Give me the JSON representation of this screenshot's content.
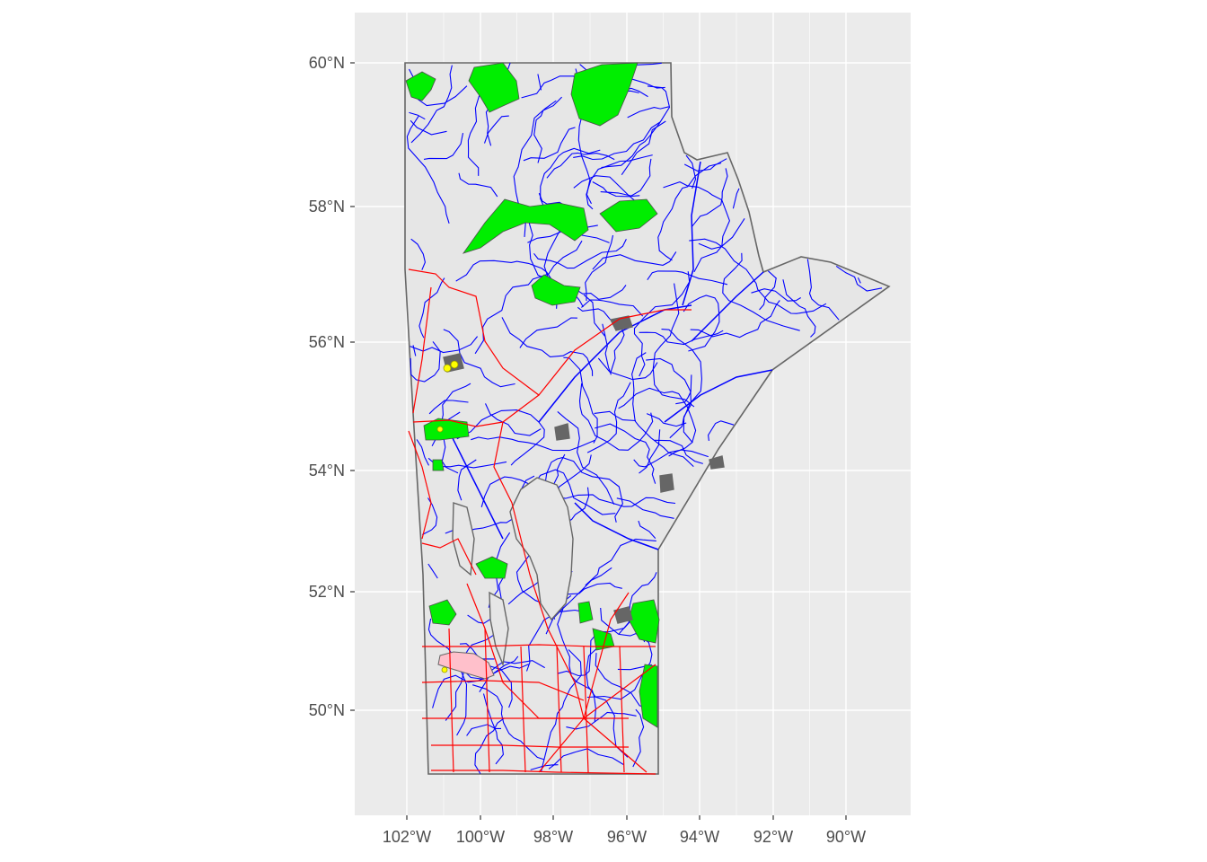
{
  "map": {
    "type": "choropleth-style GIS map",
    "region": "Manitoba",
    "axes": {
      "x_ticks": [
        "102°W",
        "100°W",
        "98°W",
        "96°W",
        "94°W",
        "92°W",
        "90°W"
      ],
      "y_ticks": [
        "60°N",
        "58°N",
        "56°N",
        "54°N",
        "52°N",
        "50°N"
      ],
      "x_range": [
        -103.5,
        -88.3
      ],
      "y_range": [
        48.4,
        60.8
      ]
    },
    "colors": {
      "panel_background": "#ebebeb",
      "gridline": "#ffffff",
      "province_fill": "#e6e6e6",
      "province_border": "#666666",
      "rivers": "#0000ff",
      "roads": "#ff0000",
      "protected_areas": "#00ee00",
      "lakes_outline": "#666666",
      "urban_area": "#ffc0cb",
      "points": "#ffff00"
    },
    "layers": [
      "province",
      "rivers",
      "roads",
      "protected-areas",
      "lakes",
      "urban-area",
      "points"
    ]
  }
}
